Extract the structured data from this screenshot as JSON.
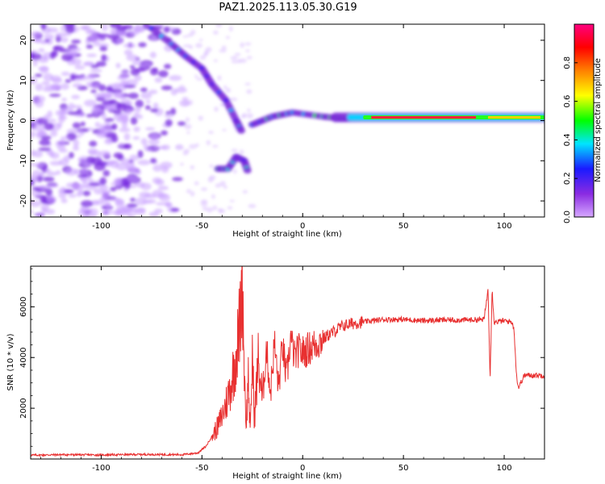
{
  "title": "PAZ1.2025.113.05.30.G19",
  "chart_data": [
    {
      "type": "heatmap",
      "xlabel": "Height of straight line (km)",
      "ylabel": "Frequency (Hz)",
      "xlim": [
        -135,
        120
      ],
      "ylim": [
        -24,
        24
      ],
      "x_ticks": [
        -100,
        -50,
        0,
        50,
        100
      ],
      "y_ticks": [
        20,
        10,
        0,
        -10,
        -20
      ],
      "grid": false,
      "colorbar": {
        "label": "Normalized spectral amplitude",
        "range": [
          0.0,
          1.0
        ],
        "ticks": [
          0.0,
          0.2,
          0.4,
          0.6,
          0.8
        ],
        "tick_labels": [
          "0.0",
          "0.2",
          "0.4",
          "0.6",
          "0.8"
        ],
        "colormap": [
          "#d6a8ff",
          "#8a2be2",
          "#1a1aff",
          "#00e5ff",
          "#00ff00",
          "#ffff00",
          "#ff7f00",
          "#ff0000",
          "#ff0080"
        ]
      },
      "features": [
        {
          "x_range": [
            -135,
            -55
          ],
          "freq_range": [
            -24,
            24
          ],
          "amplitude": 0.05
        },
        {
          "x": [
            -75,
            -65,
            -58,
            -50,
            -45,
            -38,
            -33,
            -30
          ],
          "freq": [
            23,
            19,
            16,
            13,
            9,
            5,
            0,
            -3
          ],
          "amplitude": 0.3
        },
        {
          "x": [
            -42,
            -37,
            -33,
            -29,
            -27
          ],
          "freq": [
            -12,
            -12,
            -9,
            -10,
            -13
          ],
          "amplitude": 0.4
        },
        {
          "x": [
            -25,
            -15,
            -5,
            10,
            20,
            30
          ],
          "freq": [
            -1,
            1,
            2,
            1,
            0.5,
            0.8
          ],
          "amplitude": 0.45
        },
        {
          "x_range": [
            30,
            120
          ],
          "freq": 0.8,
          "amplitude": 0.9
        }
      ]
    },
    {
      "type": "line",
      "xlabel": "Height of straight line (km)",
      "ylabel": "SNR (10 * v/v)",
      "xlim": [
        -135,
        120
      ],
      "ylim": [
        0,
        7600
      ],
      "x_ticks": [
        -100,
        -50,
        0,
        50,
        100
      ],
      "y_ticks": [
        2000,
        4000,
        6000
      ],
      "grid": false,
      "color": "#e83030",
      "series": [
        {
          "x": [
            -135,
            -120,
            -100,
            -80,
            -60,
            -52,
            -48,
            -45,
            -42,
            -40,
            -38,
            -36,
            -34,
            -32,
            -31,
            -30,
            -29,
            -28,
            -27,
            -26,
            -25,
            -24,
            -22,
            -20,
            -18,
            -16,
            -14,
            -12,
            -10,
            -8,
            -6,
            -4,
            -2,
            0,
            2,
            4,
            6,
            8,
            10,
            12,
            14,
            16,
            18,
            20,
            25,
            30,
            35,
            40,
            50,
            60,
            70,
            80,
            90,
            92,
            93,
            94,
            95,
            100,
            104,
            105,
            106,
            107,
            110,
            120
          ],
          "y": [
            150,
            170,
            160,
            180,
            170,
            240,
            500,
            900,
            1300,
            1700,
            2200,
            2800,
            3600,
            4700,
            5600,
            7600,
            3600,
            1300,
            3300,
            800,
            4300,
            1600,
            3900,
            2300,
            4400,
            2600,
            4600,
            2800,
            4500,
            3100,
            4800,
            4000,
            4300,
            4200,
            4300,
            4400,
            4500,
            4600,
            4700,
            4850,
            4950,
            5050,
            5150,
            5250,
            5350,
            5400,
            5450,
            5500,
            5500,
            5450,
            5480,
            5480,
            5500,
            6700,
            3200,
            6700,
            5400,
            5450,
            5400,
            5000,
            3400,
            2800,
            3300,
            3300
          ]
        }
      ]
    }
  ]
}
